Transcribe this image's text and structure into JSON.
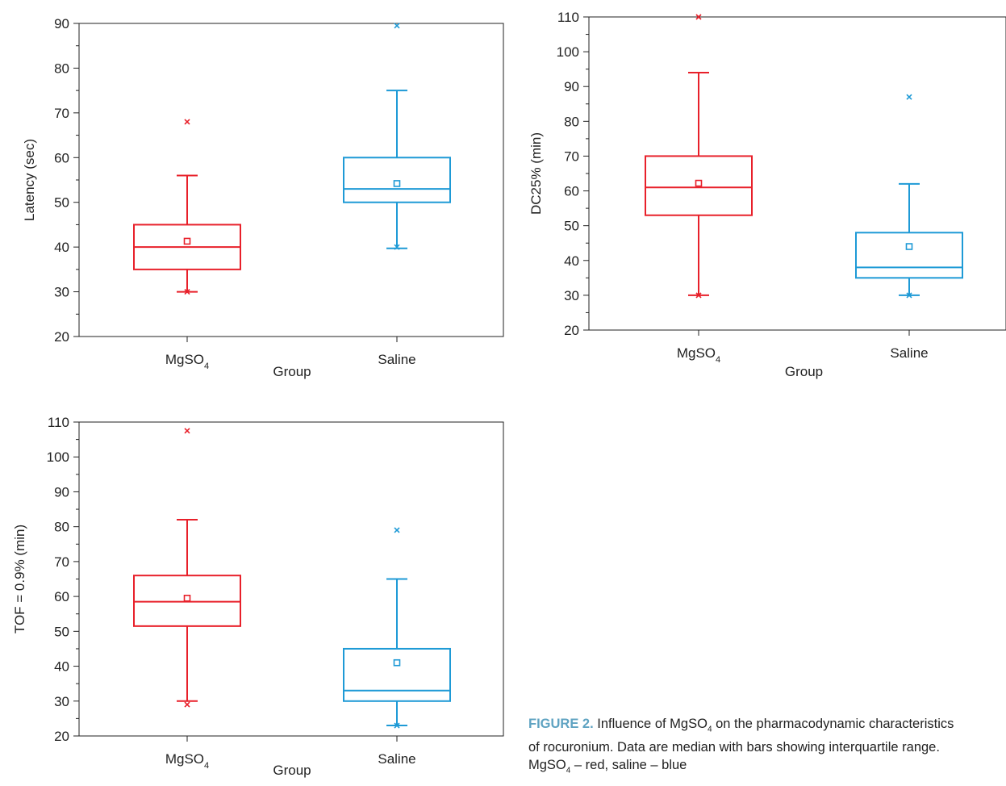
{
  "colors": {
    "mgso4": "#e8202a",
    "saline": "#1e9ad6",
    "axis": "#222222"
  },
  "chart_data": [
    {
      "type": "box",
      "xlabel": "Group",
      "ylabel": "Latency (sec)",
      "ylim": [
        20,
        90
      ],
      "yticks": [
        20,
        30,
        40,
        50,
        60,
        70,
        80,
        90
      ],
      "categories": [
        {
          "base": "MgSO",
          "sub": "4"
        },
        {
          "base": "Saline",
          "sub": ""
        }
      ],
      "series": [
        {
          "name": "MgSO4",
          "color": "#e8202a",
          "whisker_low": 30,
          "q1": 35,
          "median": 40,
          "q3": 45,
          "whisker_high": 56,
          "mean": 41.3,
          "outliers": [
            30,
            68
          ]
        },
        {
          "name": "saline",
          "color": "#1e9ad6",
          "whisker_low": 39.7,
          "q1": 50,
          "median": 53,
          "q3": 60,
          "whisker_high": 75,
          "mean": 54.2,
          "outliers": [
            40,
            89.5
          ]
        }
      ]
    },
    {
      "type": "box",
      "xlabel": "Group",
      "ylabel": "DC25% (min)",
      "ylim": [
        20,
        110
      ],
      "yticks": [
        20,
        30,
        40,
        50,
        60,
        70,
        80,
        90,
        100,
        110
      ],
      "categories": [
        {
          "base": "MgSO",
          "sub": "4"
        },
        {
          "base": "Saline",
          "sub": ""
        }
      ],
      "series": [
        {
          "name": "MgSO4",
          "color": "#e8202a",
          "whisker_low": 30,
          "q1": 53,
          "median": 61,
          "q3": 70,
          "whisker_high": 94,
          "mean": 62.2,
          "outliers": [
            30,
            110
          ]
        },
        {
          "name": "saline",
          "color": "#1e9ad6",
          "whisker_low": 30,
          "q1": 35,
          "median": 38,
          "q3": 48,
          "whisker_high": 62,
          "mean": 44,
          "outliers": [
            30,
            87
          ]
        }
      ]
    },
    {
      "type": "box",
      "xlabel": "Group",
      "ylabel": "TOF = 0.9% (min)",
      "ylim": [
        20,
        110
      ],
      "yticks": [
        20,
        30,
        40,
        50,
        60,
        70,
        80,
        90,
        100,
        110
      ],
      "categories": [
        {
          "base": "MgSO",
          "sub": "4"
        },
        {
          "base": "Saline",
          "sub": ""
        }
      ],
      "series": [
        {
          "name": "MgSO4",
          "color": "#e8202a",
          "whisker_low": 30,
          "q1": 51.5,
          "median": 58.5,
          "q3": 66,
          "whisker_high": 82,
          "mean": 59.5,
          "outliers": [
            29,
            107.5
          ]
        },
        {
          "name": "saline",
          "color": "#1e9ad6",
          "whisker_low": 23,
          "q1": 30,
          "median": 33,
          "q3": 45,
          "whisker_high": 65,
          "mean": 41,
          "outliers": [
            23,
            79
          ]
        }
      ]
    }
  ],
  "caption": {
    "label": "FIGURE 2.",
    "line1_a": " Influence of MgSO",
    "line1_sub": "4",
    "line1_b": " on the pharmacodynamic characteristics",
    "line2": "of rocuronium. Data are median with bars showing interquartile range.",
    "line3_a": "MgSO",
    "line3_sub": "4",
    "line3_b": " – red, saline – blue"
  }
}
